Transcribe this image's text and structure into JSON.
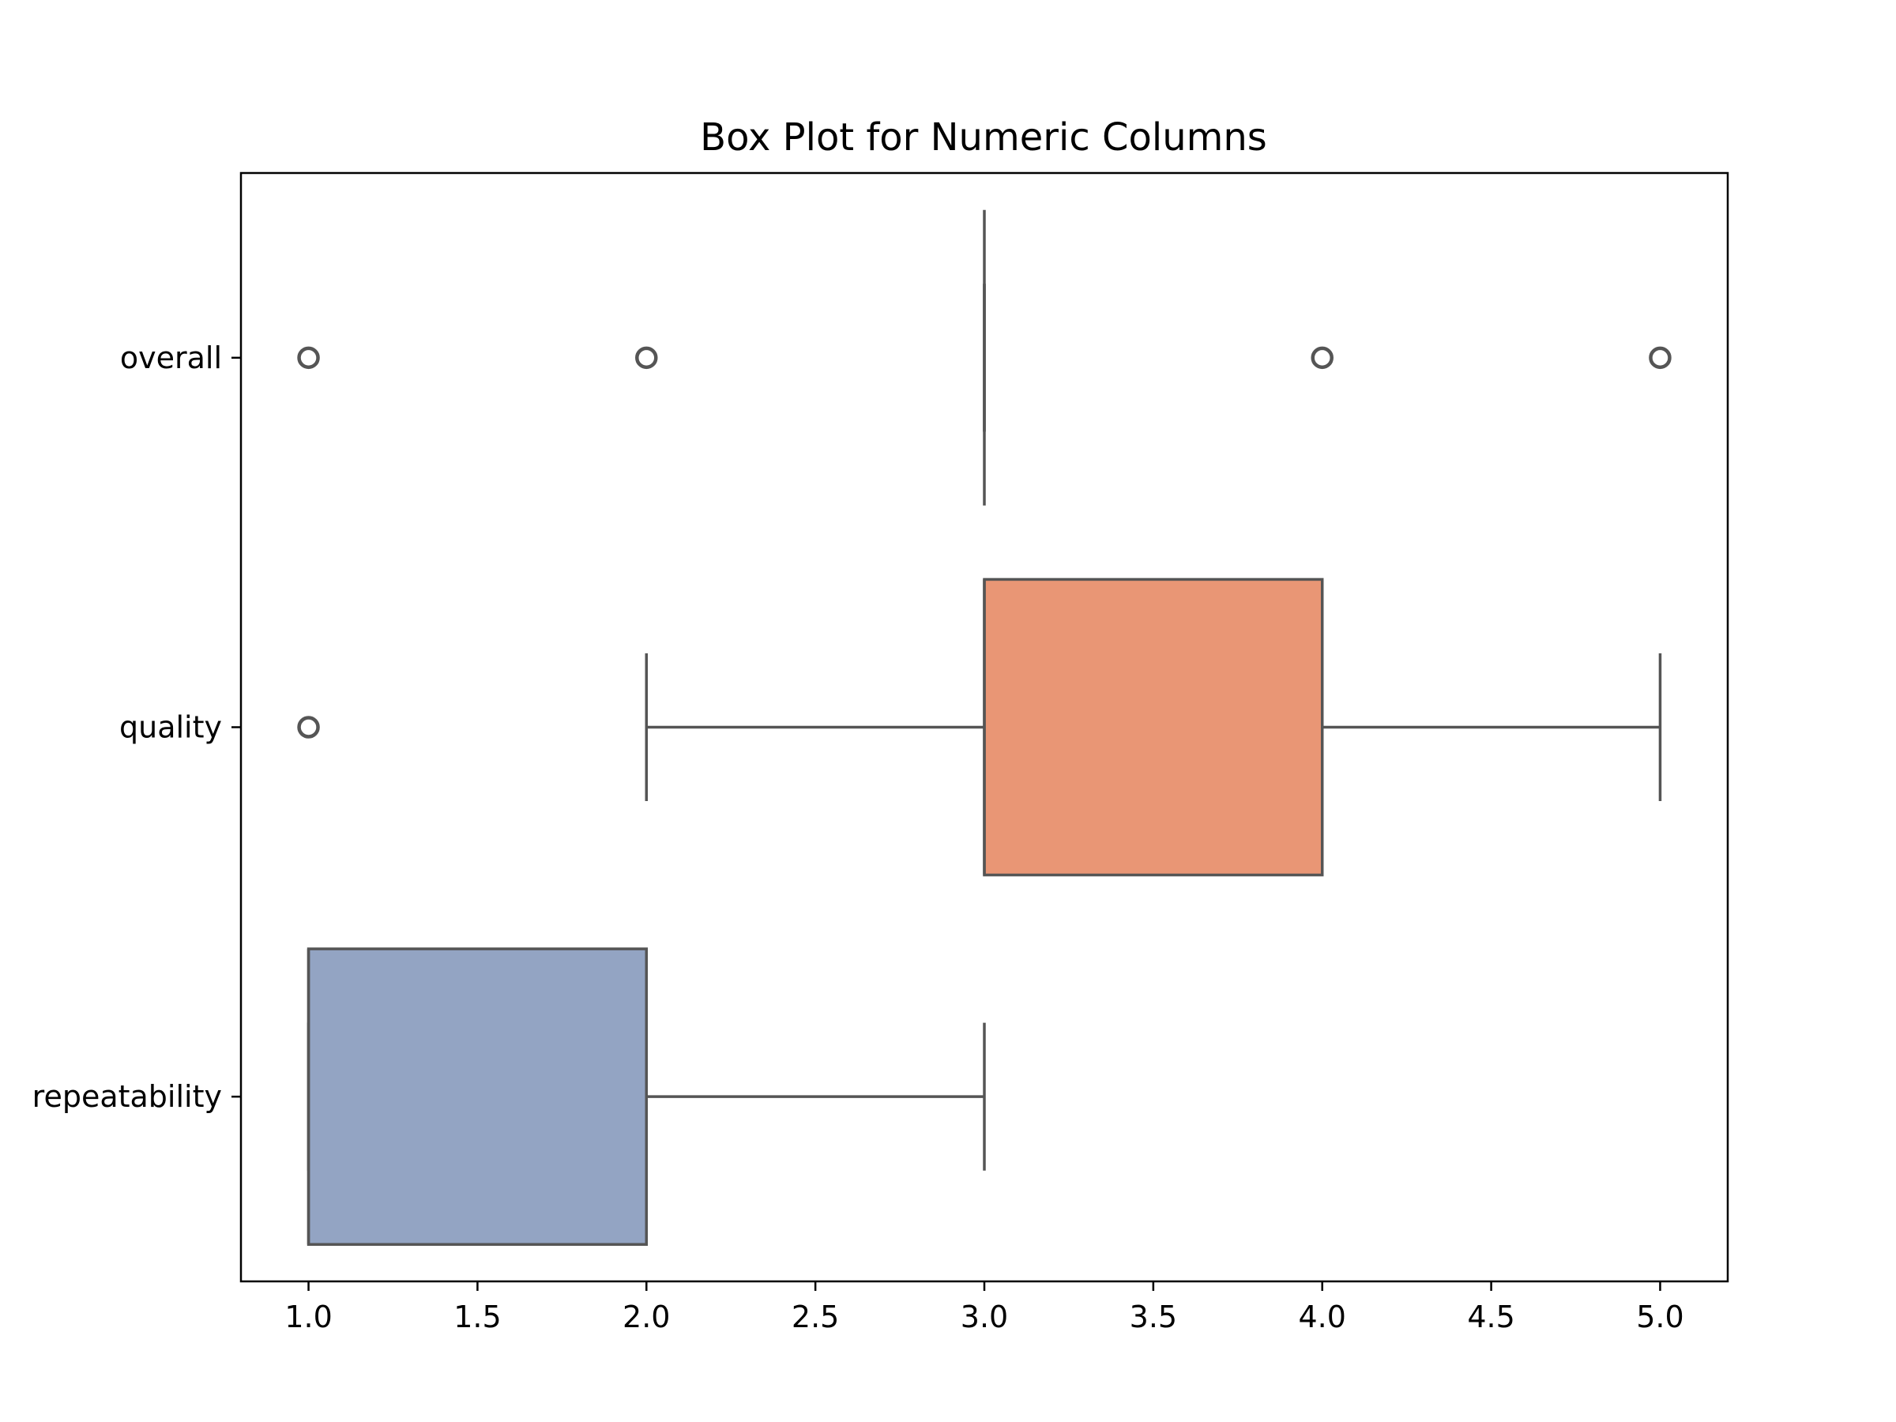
{
  "chart_data": {
    "type": "box",
    "orientation": "horizontal",
    "title": "Box Plot for Numeric Columns",
    "xlabel": "",
    "ylabel": "",
    "xlim": [
      0.8,
      5.2
    ],
    "xticks": [
      1.0,
      1.5,
      2.0,
      2.5,
      3.0,
      3.5,
      4.0,
      4.5,
      5.0
    ],
    "xtick_labels": [
      "1.0",
      "1.5",
      "2.0",
      "2.5",
      "3.0",
      "3.5",
      "4.0",
      "4.5",
      "5.0"
    ],
    "grid": false,
    "categories": [
      "overall",
      "quality",
      "repeatability"
    ],
    "boxes": [
      {
        "category": "overall",
        "whisker_low": 3,
        "q1": 3,
        "median": 3,
        "q3": 3,
        "whisker_high": 3,
        "outliers": [
          1,
          2,
          4,
          5
        ],
        "color": "#66c2a5"
      },
      {
        "category": "quality",
        "whisker_low": 2,
        "q1": 3,
        "median": 3,
        "q3": 4,
        "whisker_high": 5,
        "outliers": [
          1
        ],
        "color": "#e99675"
      },
      {
        "category": "repeatability",
        "whisker_low": 1,
        "q1": 1,
        "median": 1,
        "q3": 2,
        "whisker_high": 3,
        "outliers": [],
        "color": "#93a4c3"
      }
    ],
    "line_color": "#555555"
  }
}
